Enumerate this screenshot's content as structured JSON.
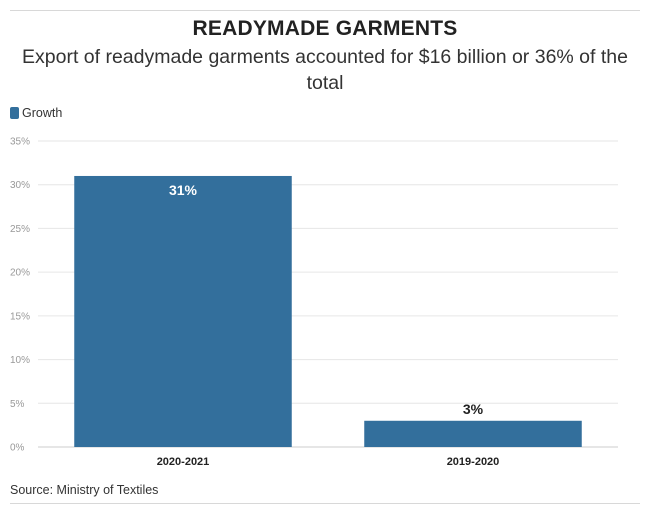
{
  "title": "READYMADE GARMENTS",
  "subtitle": "Export of readymade garments accounted for $16 billion or 36% of the total",
  "source": "Source: Ministry of Textiles",
  "colors": {
    "bar": "#336f9c",
    "grid": "#e6e6e6",
    "axis": "#cccccc"
  },
  "chart_data": {
    "type": "bar",
    "categories": [
      "2020-2021",
      "2019-2020"
    ],
    "series": [
      {
        "name": "Growth",
        "values": [
          31,
          3
        ]
      }
    ],
    "data_labels": [
      "31%",
      "3%"
    ],
    "yticks": [
      "0%",
      "5%",
      "10%",
      "15%",
      "20%",
      "25%",
      "30%",
      "35%"
    ],
    "ylim": [
      0,
      35
    ],
    "grid": true,
    "legend": "top-left"
  }
}
